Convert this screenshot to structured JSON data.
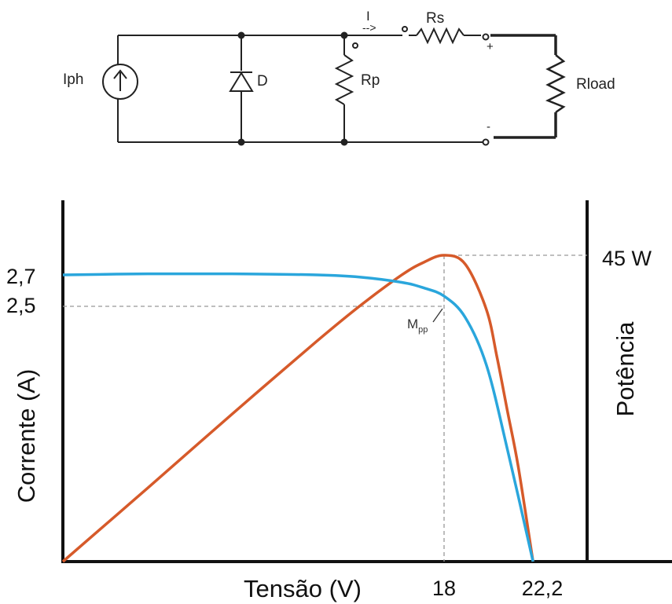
{
  "circuit": {
    "labels": {
      "source": "Iph",
      "diode": "D",
      "shunt": "Rp",
      "series": "Rs",
      "load": "Rload",
      "current": "I",
      "current_arrow": "-->",
      "plus": "+",
      "minus": "-"
    }
  },
  "chart_data": {
    "type": "line",
    "xlabel": "Tensão (V)",
    "ylabel": "Corrente (A)",
    "y2label": "Potência",
    "x_ticks": [
      "18",
      "22,2"
    ],
    "y_ticks": [
      "2,7",
      "2,5"
    ],
    "y2_ticks": [
      "45 W"
    ],
    "annotation": {
      "text": "M",
      "subscript": "pp"
    },
    "mpp": {
      "voltage": 18,
      "current": 2.5,
      "power": 45
    },
    "open_circuit_voltage": 22.2,
    "short_circuit_current": 2.7,
    "series": [
      {
        "axis": "left",
        "color": "#2aa6dc",
        "x": [
          0,
          4,
          8,
          12,
          14,
          16,
          17,
          18,
          19,
          20,
          21,
          22.2
        ],
        "y": [
          2.7,
          2.71,
          2.71,
          2.7,
          2.68,
          2.63,
          2.58,
          2.5,
          2.3,
          1.85,
          1.05,
          0
        ]
      },
      {
        "axis": "right",
        "color": "#d65a2a",
        "x": [
          0,
          4,
          8,
          12,
          14,
          16,
          17,
          18,
          19,
          20,
          20.5,
          21,
          21.5,
          22.2
        ],
        "y": [
          0,
          10.8,
          21.7,
          32.4,
          37.5,
          42.1,
          43.9,
          45,
          43.7,
          37,
          30,
          22,
          14,
          0
        ]
      }
    ],
    "grid": false,
    "xlim": [
      0,
      22.2
    ],
    "ylim": [
      0,
      2.7
    ],
    "y2lim": [
      0,
      45
    ]
  }
}
